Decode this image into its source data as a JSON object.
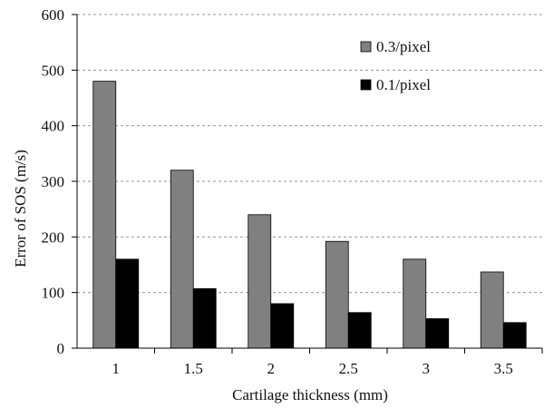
{
  "chart_data": {
    "type": "bar",
    "categories": [
      "1",
      "1.5",
      "2",
      "2.5",
      "3",
      "3.5"
    ],
    "series": [
      {
        "name": "0.3/pixel",
        "values": [
          480,
          320,
          240,
          192,
          160,
          137
        ],
        "color": "#808080"
      },
      {
        "name": "0.1/pixel",
        "values": [
          160,
          107,
          80,
          64,
          53,
          46
        ],
        "color": "#000000"
      }
    ],
    "title": "",
    "xlabel": "Cartilage thickness  (mm)",
    "ylabel": "Error of SOS  (m/s)",
    "ylim": [
      0,
      600
    ],
    "yticks": [
      0,
      100,
      200,
      300,
      400,
      500,
      600
    ],
    "grid": true,
    "legend_position": "top-right"
  }
}
